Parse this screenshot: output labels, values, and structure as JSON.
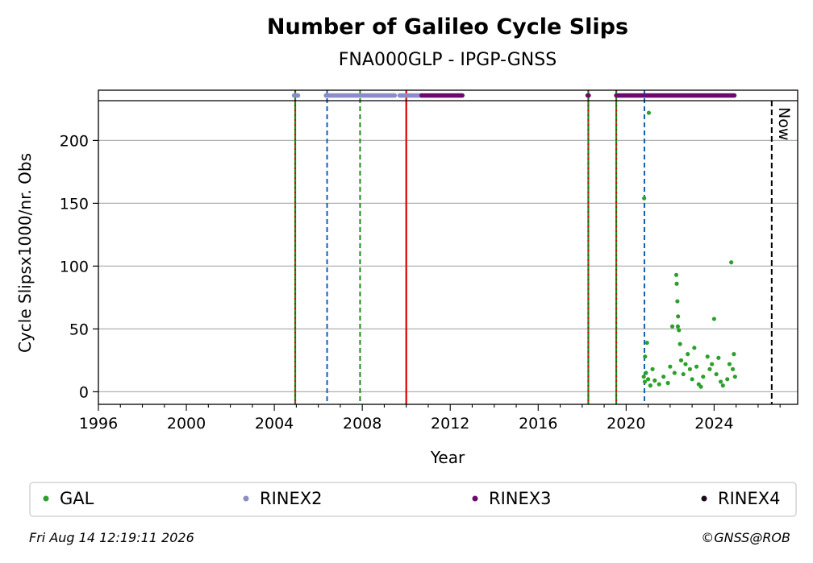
{
  "chart_data": {
    "type": "scatter",
    "title": "Number of Galileo Cycle Slips",
    "subtitle": "FNA000GLP - IPGP-GNSS",
    "xlabel": "Year",
    "ylabel": "Cycle Slipsx1000/nr. Obs",
    "xlim": [
      1996,
      2027.8
    ],
    "ylim": [
      -10,
      240
    ],
    "x_ticks": [
      1996,
      2000,
      2004,
      2008,
      2012,
      2016,
      2020,
      2024
    ],
    "y_ticks": [
      0,
      50,
      100,
      150,
      200
    ],
    "grid": "horizontal",
    "legend_position": "bottom",
    "now_label": "Now",
    "now_x": 2026.62,
    "series": [
      {
        "name": "GAL",
        "color": "#2ca02c",
        "points": [
          [
            2020.82,
            154
          ],
          [
            2020.86,
            28
          ],
          [
            2020.95,
            39
          ],
          [
            2021.03,
            222
          ],
          [
            2020.8,
            12
          ],
          [
            2020.85,
            8
          ],
          [
            2020.9,
            15
          ],
          [
            2021.0,
            10
          ],
          [
            2021.1,
            5
          ],
          [
            2021.2,
            18
          ],
          [
            2021.3,
            9
          ],
          [
            2021.5,
            6
          ],
          [
            2021.7,
            12
          ],
          [
            2021.9,
            7
          ],
          [
            2022.0,
            20
          ],
          [
            2022.1,
            52
          ],
          [
            2022.2,
            15
          ],
          [
            2022.28,
            93
          ],
          [
            2022.3,
            86
          ],
          [
            2022.33,
            72
          ],
          [
            2022.36,
            60
          ],
          [
            2022.4,
            49
          ],
          [
            2022.45,
            38
          ],
          [
            2022.5,
            25
          ],
          [
            2022.35,
            52
          ],
          [
            2022.6,
            14
          ],
          [
            2022.7,
            22
          ],
          [
            2022.8,
            30
          ],
          [
            2022.9,
            18
          ],
          [
            2023.0,
            10
          ],
          [
            2023.1,
            35
          ],
          [
            2023.2,
            20
          ],
          [
            2023.3,
            6
          ],
          [
            2023.4,
            4
          ],
          [
            2023.5,
            12
          ],
          [
            2023.7,
            28
          ],
          [
            2023.8,
            18
          ],
          [
            2023.9,
            22
          ],
          [
            2024.0,
            58
          ],
          [
            2024.1,
            14
          ],
          [
            2024.2,
            27
          ],
          [
            2024.3,
            8
          ],
          [
            2024.4,
            5
          ],
          [
            2024.6,
            10
          ],
          [
            2024.7,
            22
          ],
          [
            2024.78,
            103
          ],
          [
            2024.85,
            18
          ],
          [
            2024.9,
            30
          ],
          [
            2024.95,
            12
          ]
        ]
      },
      {
        "name": "RINEX2",
        "color": "#8c8cc8",
        "segments": [
          [
            2004.9,
            2005.1
          ],
          [
            2006.35,
            2009.5
          ],
          [
            2009.7,
            2010.7
          ]
        ]
      },
      {
        "name": "RINEX3",
        "color": "#6b0a6b",
        "segments": [
          [
            2010.7,
            2012.55
          ],
          [
            2018.25,
            2018.3
          ],
          [
            2019.55,
            2024.95
          ]
        ]
      },
      {
        "name": "RINEX4",
        "color": "#1a0a1a",
        "segments": []
      }
    ],
    "vlines": [
      {
        "x": 2004.95,
        "style": "green-red"
      },
      {
        "x": 2006.4,
        "style": "blue-dashed"
      },
      {
        "x": 2007.9,
        "style": "green-dashed"
      },
      {
        "x": 2010.0,
        "style": "red-solid"
      },
      {
        "x": 2018.28,
        "style": "green-red"
      },
      {
        "x": 2019.55,
        "style": "green-red"
      },
      {
        "x": 2020.83,
        "style": "blue-dashed"
      }
    ]
  },
  "footer": {
    "timestamp": "Fri Aug 14 12:19:11 2026",
    "copyright": "©GNSS@ROB"
  }
}
